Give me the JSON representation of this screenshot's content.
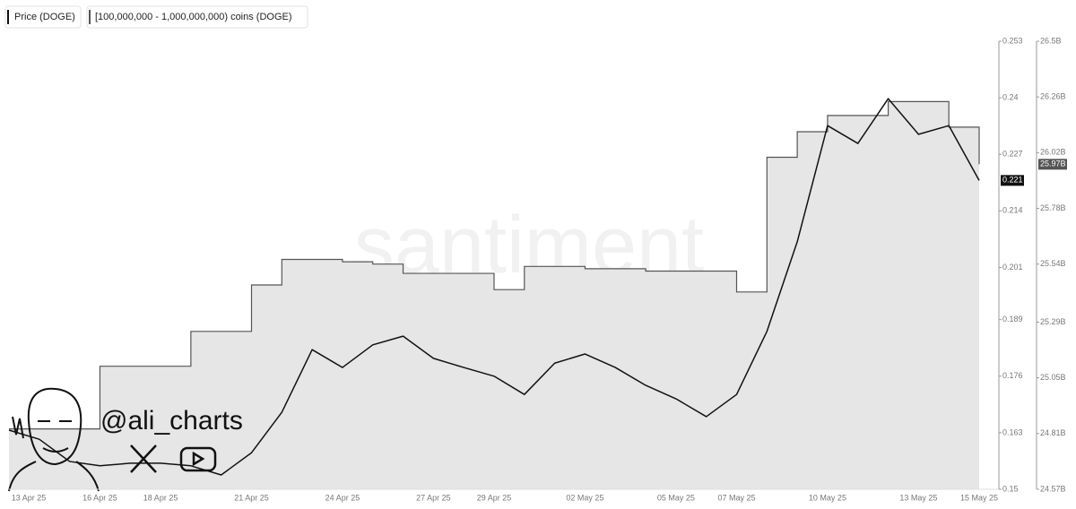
{
  "chart_data": {
    "type": "line",
    "legend": [
      "Price (DOGE)",
      "[100,000,000 - 1,000,000,000) coins (DOGE)"
    ],
    "watermark": "santiment",
    "handle": "@ali_charts",
    "x": [
      "13 Apr 25",
      "14 Apr 25",
      "15 Apr 25",
      "16 Apr 25",
      "17 Apr 25",
      "18 Apr 25",
      "19 Apr 25",
      "20 Apr 25",
      "21 Apr 25",
      "22 Apr 25",
      "23 Apr 25",
      "24 Apr 25",
      "25 Apr 25",
      "26 Apr 25",
      "27 Apr 25",
      "28 Apr 25",
      "29 Apr 25",
      "30 Apr 25",
      "01 May 25",
      "02 May 25",
      "03 May 25",
      "04 May 25",
      "05 May 25",
      "06 May 25",
      "07 May 25",
      "08 May 25",
      "09 May 25",
      "10 May 25",
      "11 May 25",
      "12 May 25",
      "13 May 25",
      "14 May 25",
      "15 May 25"
    ],
    "xticks": [
      "13 Apr 25",
      "16 Apr 25",
      "18 Apr 25",
      "21 Apr 25",
      "24 Apr 25",
      "27 Apr 25",
      "29 Apr 25",
      "02 May 25",
      "05 May 25",
      "07 May 25",
      "10 May 25",
      "13 May 25",
      "15 May 25"
    ],
    "series": [
      {
        "name": "Price (DOGE)",
        "color": "#111111",
        "axis": "y",
        "style": "line",
        "current_label": "0.221",
        "values": [
          0.1636,
          0.1615,
          0.1564,
          0.1554,
          0.156,
          0.156,
          0.1554,
          0.1533,
          0.1584,
          0.1677,
          0.1821,
          0.178,
          0.1832,
          0.1852,
          0.1801,
          0.178,
          0.176,
          0.1718,
          0.179,
          0.1811,
          0.178,
          0.1739,
          0.1708,
          0.1667,
          0.1718,
          0.1863,
          0.2069,
          0.2336,
          0.2295,
          0.2398,
          0.2316,
          0.2336,
          0.221
        ]
      },
      {
        "name": "[100,000,000 - 1,000,000,000) coins (DOGE)",
        "color": "#555555",
        "fill": "#e6e6e6",
        "axis": "y2",
        "style": "step",
        "current_label": "25.97B",
        "values": [
          24.83,
          24.83,
          24.83,
          25.1,
          25.1,
          25.1,
          25.25,
          25.25,
          25.45,
          25.56,
          25.56,
          25.55,
          25.54,
          25.5,
          25.5,
          25.5,
          25.43,
          25.53,
          25.53,
          25.52,
          25.52,
          25.51,
          25.51,
          25.51,
          25.42,
          26.0,
          26.11,
          26.18,
          26.18,
          26.24,
          26.24,
          26.13,
          25.97
        ]
      }
    ],
    "ylim": [
      0.15,
      0.253
    ],
    "yticks": [
      0.15,
      0.163,
      0.176,
      0.189,
      0.201,
      0.214,
      0.227,
      0.24,
      0.253
    ],
    "y2lim": [
      24.57,
      26.5
    ],
    "y2ticks": [
      {
        "value": 24.57,
        "label": "24.57B"
      },
      {
        "value": 24.81,
        "label": "24.81B"
      },
      {
        "value": 25.05,
        "label": "25.05B"
      },
      {
        "value": 25.29,
        "label": "25.29B"
      },
      {
        "value": 25.54,
        "label": "25.54B"
      },
      {
        "value": 25.78,
        "label": "25.78B"
      },
      {
        "value": 26.02,
        "label": "26.02B"
      },
      {
        "value": 26.26,
        "label": "26.26B"
      },
      {
        "value": 26.5,
        "label": "26.5B"
      }
    ]
  }
}
